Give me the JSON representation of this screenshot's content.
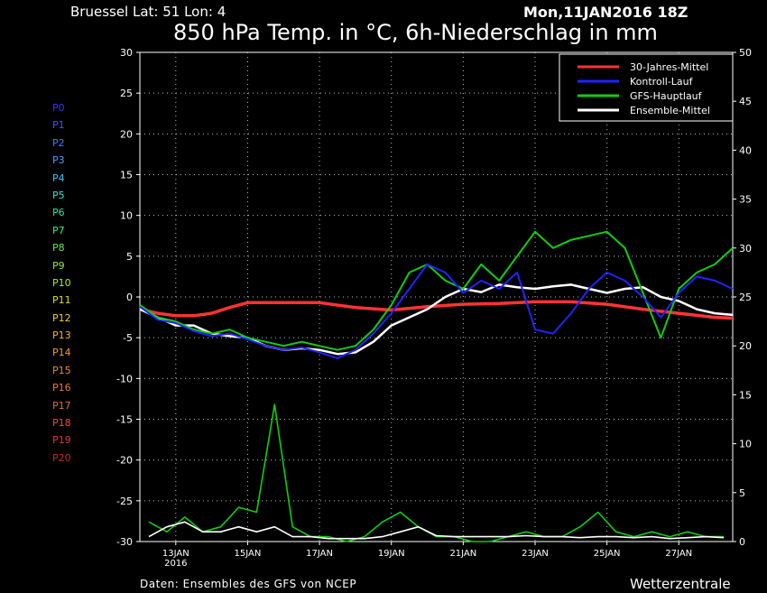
{
  "header": {
    "station": "Bruessel   Lat: 51  Lon: 4",
    "run": "Mon,11JAN2016  18Z",
    "title": "850 hPa Temp. in °C, 6h-Niederschlag in mm"
  },
  "footer": {
    "source": "Daten: Ensembles des GFS von NCEP",
    "brand": "Wetterzentrale"
  },
  "members": [
    {
      "label": "P0",
      "color": "#3333ff"
    },
    {
      "label": "P1",
      "color": "#3a55ff"
    },
    {
      "label": "P2",
      "color": "#3f77ff"
    },
    {
      "label": "P3",
      "color": "#3fa0ff"
    },
    {
      "label": "P4",
      "color": "#38c2ff"
    },
    {
      "label": "P5",
      "color": "#33dddd"
    },
    {
      "label": "P6",
      "color": "#33e0a0"
    },
    {
      "label": "P7",
      "color": "#33ee66"
    },
    {
      "label": "P8",
      "color": "#55ee33"
    },
    {
      "label": "P9",
      "color": "#88ee22"
    },
    {
      "label": "P10",
      "color": "#aaee11"
    },
    {
      "label": "P11",
      "color": "#dddd22"
    },
    {
      "label": "P12",
      "color": "#eecc33"
    },
    {
      "label": "P13",
      "color": "#f0b030"
    },
    {
      "label": "P14",
      "color": "#f09a30"
    },
    {
      "label": "P15",
      "color": "#ee8833"
    },
    {
      "label": "P16",
      "color": "#ee7733"
    },
    {
      "label": "P17",
      "color": "#ee6633"
    },
    {
      "label": "P18",
      "color": "#ee4a33"
    },
    {
      "label": "P19",
      "color": "#ee3333"
    },
    {
      "label": "P20",
      "color": "#cc2222"
    }
  ],
  "chart_data": {
    "type": "line",
    "title": "850 hPa Temp. in °C, 6h-Niederschlag in mm",
    "xlim": [
      0,
      16.5
    ],
    "x_ticks": [
      {
        "x": 1.0,
        "label": "13JAN",
        "sub": "2016"
      },
      {
        "x": 3.0,
        "label": "15JAN",
        "sub": ""
      },
      {
        "x": 5.0,
        "label": "17JAN",
        "sub": ""
      },
      {
        "x": 7.0,
        "label": "19JAN",
        "sub": ""
      },
      {
        "x": 9.0,
        "label": "21JAN",
        "sub": ""
      },
      {
        "x": 11.0,
        "label": "23JAN",
        "sub": ""
      },
      {
        "x": 13.0,
        "label": "25JAN",
        "sub": ""
      },
      {
        "x": 15.0,
        "label": "27JAN",
        "sub": ""
      }
    ],
    "y_left": {
      "label": "°C",
      "ylim": [
        -30,
        30
      ],
      "ticks": [
        30,
        25,
        20,
        15,
        10,
        5,
        0,
        -5,
        -10,
        -15,
        -20,
        -25,
        -30
      ]
    },
    "y_right": {
      "label": "mm",
      "ylim": [
        0,
        50
      ],
      "ticks": [
        50,
        45,
        40,
        35,
        30,
        25,
        20,
        15,
        10,
        5,
        0
      ]
    },
    "grid": true,
    "legend": {
      "placement": "top-right",
      "entries": [
        {
          "name": "30-Jahres-Mittel",
          "color": "#ff3333"
        },
        {
          "name": "Kontroll-Lauf",
          "color": "#2222ff"
        },
        {
          "name": "GFS-Hauptlauf",
          "color": "#11cc11"
        },
        {
          "name": "Ensemble-Mittel",
          "color": "#ffffff"
        }
      ]
    },
    "series": [
      {
        "name": "30-Jahres-Mittel",
        "axis": "left",
        "color": "#ff3333",
        "x": [
          0,
          0.5,
          1,
          1.5,
          2,
          2.5,
          3,
          4,
          5,
          6,
          7,
          8,
          9,
          10,
          11,
          12,
          13,
          14,
          15,
          16,
          16.5
        ],
        "y": [
          -1.5,
          -2.0,
          -2.3,
          -2.3,
          -2.0,
          -1.3,
          -0.7,
          -0.7,
          -0.7,
          -1.3,
          -1.6,
          -1.2,
          -0.9,
          -0.8,
          -0.6,
          -0.6,
          -0.9,
          -1.5,
          -2.0,
          -2.5,
          -2.6
        ]
      },
      {
        "name": "Ensemble-Mittel",
        "axis": "left",
        "color": "#ffffff",
        "x": [
          0,
          0.5,
          1,
          1.5,
          2,
          2.5,
          3,
          3.5,
          4,
          4.5,
          5,
          5.5,
          6,
          6.5,
          7,
          7.5,
          8,
          8.5,
          9,
          9.5,
          10,
          10.5,
          11,
          11.5,
          12,
          12.5,
          13,
          13.5,
          14,
          14.5,
          15,
          15.5,
          16,
          16.5
        ],
        "y": [
          -1.5,
          -2.5,
          -3.5,
          -3.5,
          -4.5,
          -4.8,
          -5.0,
          -6.0,
          -6.5,
          -6.3,
          -6.5,
          -7.0,
          -6.8,
          -5.5,
          -3.5,
          -2.5,
          -1.5,
          0.0,
          1.0,
          0.6,
          1.5,
          1.2,
          1.0,
          1.3,
          1.5,
          1.0,
          0.5,
          1.0,
          1.2,
          0.0,
          -0.5,
          -1.5,
          -2.0,
          -2.2
        ]
      },
      {
        "name": "GFS-Hauptlauf",
        "axis": "left",
        "color": "#11cc11",
        "x": [
          0,
          0.5,
          1,
          1.5,
          2,
          2.5,
          3,
          3.5,
          4,
          4.5,
          5,
          5.5,
          6,
          6.5,
          7,
          7.5,
          8,
          8.5,
          9,
          9.5,
          10,
          10.5,
          11,
          11.5,
          12,
          12.5,
          13,
          13.5,
          14,
          14.5,
          15,
          15.5,
          16,
          16.5
        ],
        "y": [
          -1.0,
          -2.5,
          -3.0,
          -4.0,
          -4.5,
          -4.0,
          -5.0,
          -5.5,
          -6.0,
          -5.5,
          -6.0,
          -6.5,
          -6.0,
          -4.0,
          -1.0,
          3.0,
          4.0,
          2.0,
          1.0,
          4.0,
          2.0,
          5.0,
          8.0,
          6.0,
          7.0,
          7.5,
          8.0,
          6.0,
          0.5,
          -5.0,
          1.0,
          3.0,
          4.0,
          6.0
        ]
      },
      {
        "name": "Kontroll-Lauf",
        "axis": "left",
        "color": "#2222ff",
        "x": [
          0,
          0.5,
          1,
          1.5,
          2,
          2.5,
          3,
          3.5,
          4,
          4.5,
          5,
          5.5,
          6,
          6.5,
          7,
          7.5,
          8,
          8.5,
          9,
          9.5,
          10,
          10.5,
          11,
          11.5,
          12,
          12.5,
          13,
          13.5,
          14,
          14.5,
          15,
          15.5,
          16,
          16.5
        ],
        "y": [
          -1.2,
          -2.8,
          -3.2,
          -4.2,
          -4.8,
          -4.5,
          -5.2,
          -6.0,
          -6.5,
          -6.2,
          -6.8,
          -7.5,
          -6.5,
          -4.5,
          -2.0,
          1.0,
          4.0,
          3.0,
          0.5,
          2.0,
          1.0,
          3.0,
          -4.0,
          -4.5,
          -2.0,
          1.0,
          3.0,
          2.0,
          0.0,
          -2.5,
          0.5,
          2.5,
          2.0,
          1.0
        ]
      },
      {
        "name": "GFS-Hauptlauf Niederschlag",
        "axis": "right",
        "color": "#11cc11",
        "x": [
          0.25,
          0.75,
          1.25,
          1.75,
          2.25,
          2.75,
          3.25,
          3.75,
          4.25,
          4.75,
          5.25,
          5.75,
          6.25,
          6.75,
          7.25,
          7.75,
          8.25,
          8.75,
          9.25,
          9.75,
          10.25,
          10.75,
          11.25,
          11.75,
          12.25,
          12.75,
          13.25,
          13.75,
          14.25,
          14.75,
          15.25,
          15.75,
          16.25
        ],
        "y": [
          2.0,
          1.0,
          2.5,
          1.0,
          1.5,
          3.5,
          3.0,
          14.0,
          1.5,
          0.5,
          0.5,
          0.0,
          0.5,
          2.0,
          3.0,
          1.5,
          0.5,
          0.5,
          0.0,
          0.0,
          0.5,
          1.0,
          0.5,
          0.5,
          1.5,
          3.0,
          1.0,
          0.5,
          1.0,
          0.5,
          1.0,
          0.5,
          0.5
        ]
      },
      {
        "name": "Ensemble-Mittel Niederschlag",
        "axis": "right",
        "color": "#ffffff",
        "x": [
          0.25,
          0.75,
          1.25,
          1.75,
          2.25,
          2.75,
          3.25,
          3.75,
          4.25,
          4.75,
          5.25,
          5.75,
          6.25,
          6.75,
          7.25,
          7.75,
          8.25,
          8.75,
          9.25,
          9.75,
          10.25,
          10.75,
          11.25,
          11.75,
          12.25,
          12.75,
          13.25,
          13.75,
          14.25,
          14.75,
          15.25,
          15.75,
          16.25
        ],
        "y": [
          0.5,
          1.5,
          2.0,
          1.0,
          1.0,
          1.5,
          1.0,
          1.5,
          0.5,
          0.5,
          0.3,
          0.3,
          0.3,
          0.5,
          1.0,
          1.5,
          0.6,
          0.5,
          0.5,
          0.5,
          0.5,
          0.6,
          0.5,
          0.5,
          0.4,
          0.5,
          0.5,
          0.4,
          0.5,
          0.3,
          0.4,
          0.5,
          0.4
        ]
      }
    ]
  }
}
